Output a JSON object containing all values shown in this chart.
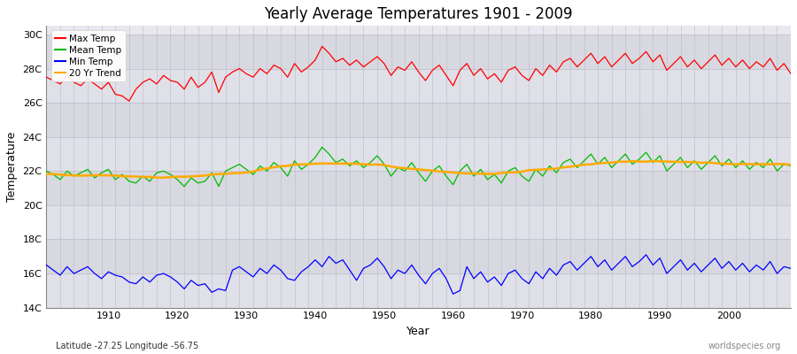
{
  "title": "Yearly Average Temperatures 1901 - 2009",
  "xlabel": "Year",
  "ylabel": "Temperature",
  "lat_lon_label": "Latitude -27.25 Longitude -56.75",
  "source_label": "worldspecies.org",
  "ylim": [
    14,
    30.5
  ],
  "yticks": [
    14,
    16,
    18,
    20,
    22,
    24,
    26,
    28,
    30
  ],
  "ytick_labels": [
    "14C",
    "16C",
    "18C",
    "20C",
    "22C",
    "24C",
    "26C",
    "28C",
    "30C"
  ],
  "year_start": 1901,
  "year_end": 2009,
  "colors": {
    "max_temp": "#ff0000",
    "mean_temp": "#00bb00",
    "min_temp": "#0000ff",
    "trend": "#ffaa00",
    "fig_bg": "#ffffff",
    "plot_bg": "#e8e8ee",
    "grid": "#cccccc"
  },
  "legend_labels": [
    "Max Temp",
    "Mean Temp",
    "Min Temp",
    "20 Yr Trend"
  ],
  "max_temp": [
    27.5,
    27.3,
    27.1,
    27.6,
    27.2,
    27.0,
    27.4,
    27.1,
    26.8,
    27.2,
    26.5,
    26.4,
    26.1,
    26.8,
    27.2,
    27.4,
    27.1,
    27.6,
    27.3,
    27.2,
    26.8,
    27.5,
    26.9,
    27.2,
    27.8,
    26.6,
    27.5,
    27.8,
    28.0,
    27.7,
    27.5,
    28.0,
    27.7,
    28.2,
    28.0,
    27.5,
    28.3,
    27.8,
    28.1,
    28.5,
    29.3,
    28.9,
    28.4,
    28.6,
    28.2,
    28.5,
    28.1,
    28.4,
    28.7,
    28.3,
    27.6,
    28.1,
    27.9,
    28.4,
    27.8,
    27.3,
    27.9,
    28.2,
    27.6,
    27.0,
    27.9,
    28.3,
    27.6,
    28.0,
    27.4,
    27.7,
    27.2,
    27.9,
    28.1,
    27.6,
    27.3,
    28.0,
    27.6,
    28.2,
    27.8,
    28.4,
    28.6,
    28.1,
    28.5,
    28.9,
    28.3,
    28.7,
    28.1,
    28.5,
    28.9,
    28.3,
    28.6,
    29.0,
    28.4,
    28.8,
    27.9,
    28.3,
    28.7,
    28.1,
    28.5,
    28.0,
    28.4,
    28.8,
    28.2,
    28.6,
    28.1,
    28.5,
    28.0,
    28.4,
    28.1,
    28.6,
    27.9,
    28.3,
    27.7
  ],
  "mean_temp": [
    22.0,
    21.8,
    21.5,
    22.0,
    21.7,
    21.9,
    22.1,
    21.6,
    21.9,
    22.1,
    21.5,
    21.8,
    21.4,
    21.3,
    21.7,
    21.4,
    21.9,
    22.0,
    21.8,
    21.5,
    21.1,
    21.6,
    21.3,
    21.4,
    21.9,
    21.1,
    22.0,
    22.2,
    22.4,
    22.1,
    21.8,
    22.3,
    22.0,
    22.5,
    22.2,
    21.7,
    22.6,
    22.1,
    22.4,
    22.8,
    23.4,
    23.0,
    22.5,
    22.7,
    22.3,
    22.6,
    22.2,
    22.5,
    22.9,
    22.4,
    21.7,
    22.2,
    22.0,
    22.5,
    21.9,
    21.4,
    22.0,
    22.3,
    21.7,
    21.2,
    22.0,
    22.4,
    21.7,
    22.1,
    21.5,
    21.8,
    21.3,
    22.0,
    22.2,
    21.7,
    21.4,
    22.1,
    21.7,
    22.3,
    21.9,
    22.5,
    22.7,
    22.2,
    22.6,
    23.0,
    22.4,
    22.8,
    22.2,
    22.6,
    23.0,
    22.4,
    22.7,
    23.1,
    22.5,
    22.9,
    22.0,
    22.4,
    22.8,
    22.2,
    22.6,
    22.1,
    22.5,
    22.9,
    22.3,
    22.7,
    22.2,
    22.6,
    22.1,
    22.5,
    22.2,
    22.7,
    22.0,
    22.4,
    22.3
  ],
  "min_temp": [
    16.5,
    16.2,
    15.9,
    16.4,
    16.0,
    16.2,
    16.4,
    16.0,
    15.7,
    16.1,
    15.9,
    15.8,
    15.5,
    15.4,
    15.8,
    15.5,
    15.9,
    16.0,
    15.8,
    15.5,
    15.1,
    15.6,
    15.3,
    15.4,
    14.9,
    15.1,
    15.0,
    16.2,
    16.4,
    16.1,
    15.8,
    16.3,
    16.0,
    16.5,
    16.2,
    15.7,
    15.6,
    16.1,
    16.4,
    16.8,
    16.4,
    17.0,
    16.6,
    16.8,
    16.2,
    15.6,
    16.3,
    16.5,
    16.9,
    16.4,
    15.7,
    16.2,
    16.0,
    16.5,
    15.9,
    15.4,
    16.0,
    16.3,
    15.7,
    14.8,
    15.0,
    16.4,
    15.7,
    16.1,
    15.5,
    15.8,
    15.3,
    16.0,
    16.2,
    15.7,
    15.4,
    16.1,
    15.7,
    16.3,
    15.9,
    16.5,
    16.7,
    16.2,
    16.6,
    17.0,
    16.4,
    16.8,
    16.2,
    16.6,
    17.0,
    16.4,
    16.7,
    17.1,
    16.5,
    16.9,
    16.0,
    16.4,
    16.8,
    16.2,
    16.6,
    16.1,
    16.5,
    16.9,
    16.3,
    16.7,
    16.2,
    16.6,
    16.1,
    16.5,
    16.2,
    16.7,
    16.0,
    16.4,
    16.3
  ]
}
